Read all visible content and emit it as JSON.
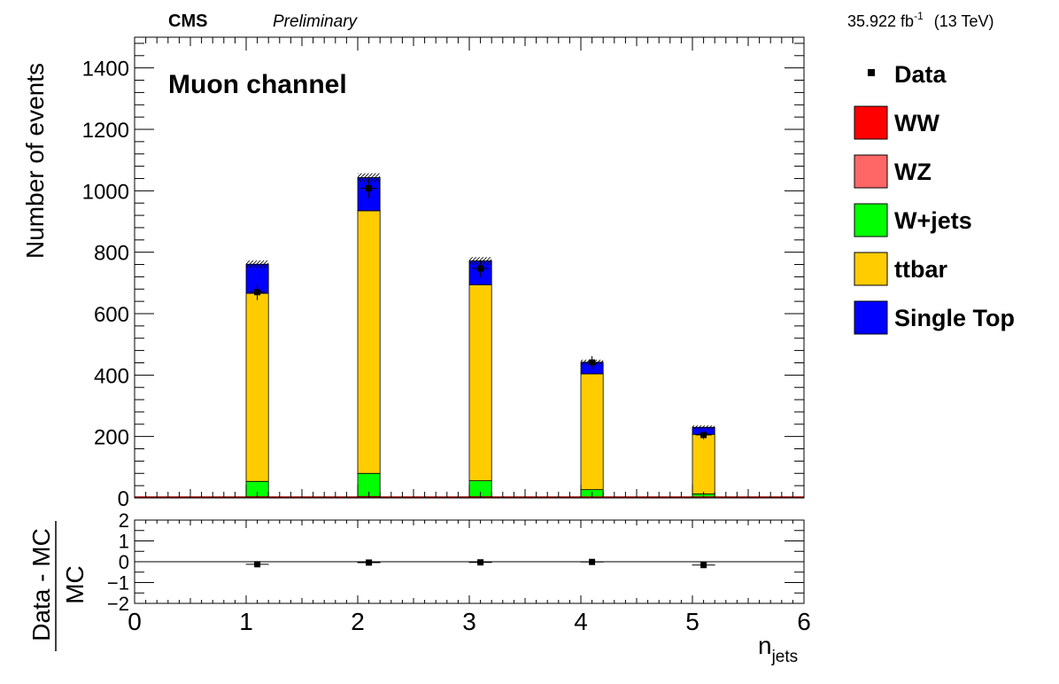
{
  "chart_data": {
    "type": "bar",
    "stacked": true,
    "header": {
      "experiment": "CMS",
      "status": "Preliminary",
      "luminosity": "35.922 fb",
      "lumi_exponent": "-1",
      "energy": "(13 TeV)"
    },
    "annotation": "Muon channel",
    "ylabel": "Number of events",
    "xlabel_main": "n",
    "xlabel_sub": "jets",
    "ratio_ylabel_num": "Data - MC",
    "ratio_ylabel_den": "MC",
    "xlim": [
      0,
      6
    ],
    "ylim": [
      0,
      1500
    ],
    "ratio_ylim": [
      -2,
      2
    ],
    "x_ticks": [
      0,
      1,
      2,
      3,
      4,
      5,
      6
    ],
    "y_ticks": [
      0,
      200,
      400,
      600,
      800,
      1000,
      1200,
      1400
    ],
    "ratio_y_ticks": [
      -2,
      -1,
      0,
      1,
      2
    ],
    "bin_width": 0.2,
    "bins": [
      1,
      2,
      3,
      4,
      5
    ],
    "series": [
      {
        "name": "WW",
        "color": "#ff0000",
        "values": [
          3,
          4,
          3,
          2,
          1
        ]
      },
      {
        "name": "WZ",
        "color": "#ff6666",
        "values": [
          1,
          1,
          1,
          0,
          0
        ]
      },
      {
        "name": "W+jets",
        "color": "#00ff00",
        "values": [
          50,
          75,
          52,
          25,
          12
        ]
      },
      {
        "name": "ttbar",
        "color": "#ffcc00",
        "values": [
          612,
          855,
          638,
          377,
          194
        ]
      },
      {
        "name": "Single Top",
        "color": "#0000ff",
        "values": [
          95,
          108,
          78,
          38,
          23
        ]
      }
    ],
    "mc_uncertainty": [
      12,
      14,
      12,
      8,
      6
    ],
    "data": {
      "name": "Data",
      "x": [
        1.1,
        2.1,
        3.1,
        4.1,
        5.1
      ],
      "y": [
        670,
        1008,
        747,
        441,
        205
      ],
      "yerr": [
        26,
        32,
        27,
        21,
        14
      ]
    },
    "ratio": {
      "x": [
        1.1,
        2.1,
        3.1,
        4.1,
        5.1
      ],
      "y": [
        -0.12,
        -0.04,
        -0.03,
        -0.01,
        -0.16
      ],
      "yerr": [
        0.04,
        0.03,
        0.04,
        0.05,
        0.07
      ]
    },
    "legend_position": "right",
    "grid": false
  }
}
